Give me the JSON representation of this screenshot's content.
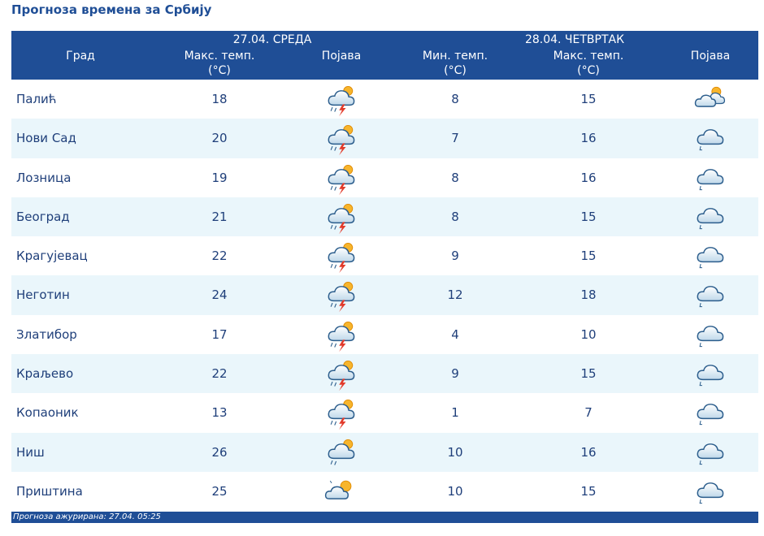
{
  "title": "Прогноза времена за Србију",
  "header": {
    "day1": "27.04. СРЕДА",
    "day2": "28.04. ЧЕТВРТАК",
    "city": "Град",
    "max1_a": "Макс. темп.",
    "max1_b": "(°C)",
    "phen1": "Појава",
    "min2_a": "Мин. темп.",
    "min2_b": "(°C)",
    "max2_a": "Макс. темп.",
    "max2_b": "(°C)",
    "phen2": "Појава"
  },
  "rows": [
    {
      "city": "Палић",
      "max1": "18",
      "icon1": "thunderstorm-sun-icon",
      "min2": "8",
      "max2": "15",
      "icon2": "partly-cloudy-icon"
    },
    {
      "city": "Нови Сад",
      "max1": "20",
      "icon1": "thunderstorm-sun-icon",
      "min2": "7",
      "max2": "16",
      "icon2": "cloud-rain-icon"
    },
    {
      "city": "Лозница",
      "max1": "19",
      "icon1": "thunderstorm-sun-icon",
      "min2": "8",
      "max2": "16",
      "icon2": "cloud-rain-icon"
    },
    {
      "city": "Београд",
      "max1": "21",
      "icon1": "thunderstorm-sun-icon",
      "min2": "8",
      "max2": "15",
      "icon2": "cloud-rain-icon"
    },
    {
      "city": "Крагујевац",
      "max1": "22",
      "icon1": "thunderstorm-sun-icon",
      "min2": "9",
      "max2": "15",
      "icon2": "cloud-rain-icon"
    },
    {
      "city": "Неготин",
      "max1": "24",
      "icon1": "thunderstorm-sun-icon",
      "min2": "12",
      "max2": "18",
      "icon2": "cloud-rain-icon"
    },
    {
      "city": "Златибор",
      "max1": "17",
      "icon1": "thunderstorm-sun-icon",
      "min2": "4",
      "max2": "10",
      "icon2": "cloud-rain-icon"
    },
    {
      "city": "Краљево",
      "max1": "22",
      "icon1": "thunderstorm-sun-icon",
      "min2": "9",
      "max2": "15",
      "icon2": "cloud-rain-icon"
    },
    {
      "city": "Копаоник",
      "max1": "13",
      "icon1": "thunderstorm-sun-icon",
      "min2": "1",
      "max2": "7",
      "icon2": "cloud-rain-icon"
    },
    {
      "city": "Ниш",
      "max1": "26",
      "icon1": "cloud-sun-rain-icon",
      "min2": "10",
      "max2": "16",
      "icon2": "cloud-rain-icon"
    },
    {
      "city": "Приштина",
      "max1": "25",
      "icon1": "sun-cloud-icon",
      "min2": "10",
      "max2": "15",
      "icon2": "cloud-rain-icon"
    }
  ],
  "footer": "Прогноза ажурирана:  27.04.  05:25",
  "colors": {
    "header_bg": "#1f4e96",
    "row_alt": "#eaf6fb",
    "text": "#1f3f7a"
  }
}
